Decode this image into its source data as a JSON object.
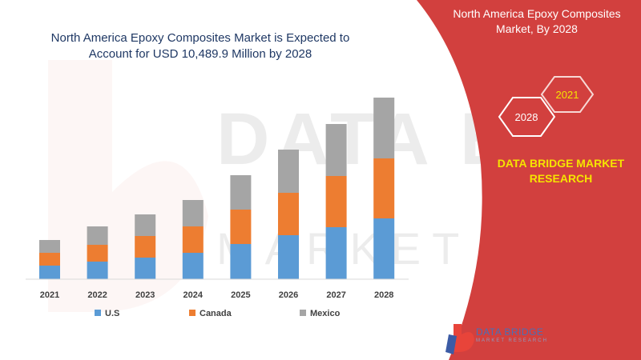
{
  "header": {
    "title_line1": "North America Epoxy Composites Market is Expected to",
    "title_line2": "Account for USD 10,489.9 Million by 2028"
  },
  "side_panel": {
    "title_line1": "North America Epoxy Composites",
    "title_line2": "Market, By 2028",
    "hex_year_back": "2021",
    "hex_year_front": "2028",
    "brand_line1": "DATA BRIDGE MARKET",
    "brand_line2": "RESEARCH",
    "color": "#d2403e",
    "accent": "#f5e400"
  },
  "logo": {
    "name": "DATA BRIDGE",
    "sub": "MARKET RESEARCH",
    "icon": "data-bridge-logo-icon"
  },
  "watermark": {
    "line1": "DATA BRIDGE",
    "line2": "MARKET RESEARCH"
  },
  "chart_data": {
    "type": "bar",
    "stacked": true,
    "categories": [
      "2021",
      "2022",
      "2023",
      "2024",
      "2025",
      "2026",
      "2027",
      "2028"
    ],
    "series": [
      {
        "name": "U.S",
        "color": "#5b9bd5",
        "values": [
          17,
          22,
          27,
          33,
          44,
          55,
          65,
          76
        ]
      },
      {
        "name": "Canada",
        "color": "#ed7d31",
        "values": [
          16,
          21,
          27,
          33,
          43,
          53,
          64,
          75
        ]
      },
      {
        "name": "Mexico",
        "color": "#a5a5a5",
        "values": [
          16,
          23,
          27,
          33,
          43,
          54,
          65,
          76
        ]
      }
    ],
    "legend_position": "bottom",
    "grid": false,
    "ylim": [
      0,
      235
    ],
    "title": "North America Epoxy Composites Market is Expected to Account for USD 10,489.9 Million by 2028"
  }
}
